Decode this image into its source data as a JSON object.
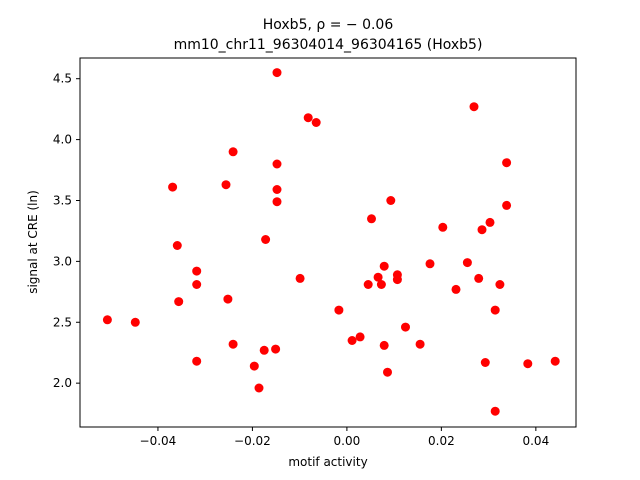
{
  "chart_data": {
    "type": "scatter",
    "title_line1": "Hoxb5, ρ = − 0.06",
    "title_line2": "mm10_chr11_96304014_96304165 (Hoxb5)",
    "xlabel": "motif activity",
    "ylabel": "signal at CRE (ln)",
    "xlim": [
      -0.0565,
      0.0485
    ],
    "ylim": [
      1.64,
      4.67
    ],
    "xticks": [
      {
        "value": -0.04,
        "label": "−0.04"
      },
      {
        "value": -0.02,
        "label": "−0.02"
      },
      {
        "value": 0.0,
        "label": "0.00"
      },
      {
        "value": 0.02,
        "label": "0.02"
      },
      {
        "value": 0.04,
        "label": "0.04"
      }
    ],
    "yticks": [
      {
        "value": 2.0,
        "label": "2.0"
      },
      {
        "value": 2.5,
        "label": "2.5"
      },
      {
        "value": 3.0,
        "label": "3.0"
      },
      {
        "value": 3.5,
        "label": "3.5"
      },
      {
        "value": 4.0,
        "label": "4.0"
      },
      {
        "value": 4.5,
        "label": "4.5"
      }
    ],
    "grid": false,
    "marker_color": "#ff0000",
    "points": [
      {
        "x": -0.0507,
        "y": 2.52
      },
      {
        "x": -0.0448,
        "y": 2.5
      },
      {
        "x": -0.0369,
        "y": 3.61
      },
      {
        "x": -0.0359,
        "y": 3.13
      },
      {
        "x": -0.0356,
        "y": 2.67
      },
      {
        "x": -0.0318,
        "y": 2.92
      },
      {
        "x": -0.0318,
        "y": 2.81
      },
      {
        "x": -0.0318,
        "y": 2.18
      },
      {
        "x": -0.0256,
        "y": 3.63
      },
      {
        "x": -0.0252,
        "y": 2.69
      },
      {
        "x": -0.0241,
        "y": 3.9
      },
      {
        "x": -0.0241,
        "y": 2.32
      },
      {
        "x": -0.0196,
        "y": 2.14
      },
      {
        "x": -0.0186,
        "y": 1.96
      },
      {
        "x": -0.0175,
        "y": 2.27
      },
      {
        "x": -0.0172,
        "y": 3.18
      },
      {
        "x": -0.0148,
        "y": 4.55
      },
      {
        "x": -0.0148,
        "y": 3.8
      },
      {
        "x": -0.0148,
        "y": 3.59
      },
      {
        "x": -0.0148,
        "y": 3.49
      },
      {
        "x": -0.0151,
        "y": 2.28
      },
      {
        "x": -0.0099,
        "y": 2.86
      },
      {
        "x": -0.0082,
        "y": 4.18
      },
      {
        "x": -0.0065,
        "y": 4.14
      },
      {
        "x": -0.0017,
        "y": 2.6
      },
      {
        "x": 0.0011,
        "y": 2.35
      },
      {
        "x": 0.0028,
        "y": 2.38
      },
      {
        "x": 0.0045,
        "y": 2.81
      },
      {
        "x": 0.0052,
        "y": 3.35
      },
      {
        "x": 0.0066,
        "y": 2.87
      },
      {
        "x": 0.0073,
        "y": 2.81
      },
      {
        "x": 0.0079,
        "y": 2.96
      },
      {
        "x": 0.0079,
        "y": 2.31
      },
      {
        "x": 0.0086,
        "y": 2.09
      },
      {
        "x": 0.0093,
        "y": 3.5
      },
      {
        "x": 0.0107,
        "y": 2.89
      },
      {
        "x": 0.0107,
        "y": 2.85
      },
      {
        "x": 0.0124,
        "y": 2.46
      },
      {
        "x": 0.0155,
        "y": 2.32
      },
      {
        "x": 0.0176,
        "y": 2.98
      },
      {
        "x": 0.0203,
        "y": 3.28
      },
      {
        "x": 0.0231,
        "y": 2.77
      },
      {
        "x": 0.0255,
        "y": 2.99
      },
      {
        "x": 0.0269,
        "y": 4.27
      },
      {
        "x": 0.0279,
        "y": 2.86
      },
      {
        "x": 0.0286,
        "y": 3.26
      },
      {
        "x": 0.0293,
        "y": 2.17
      },
      {
        "x": 0.0303,
        "y": 3.32
      },
      {
        "x": 0.0314,
        "y": 2.6
      },
      {
        "x": 0.0314,
        "y": 1.77
      },
      {
        "x": 0.0324,
        "y": 2.81
      },
      {
        "x": 0.0338,
        "y": 3.81
      },
      {
        "x": 0.0338,
        "y": 3.46
      },
      {
        "x": 0.0383,
        "y": 2.16
      },
      {
        "x": 0.0441,
        "y": 2.18
      }
    ]
  }
}
